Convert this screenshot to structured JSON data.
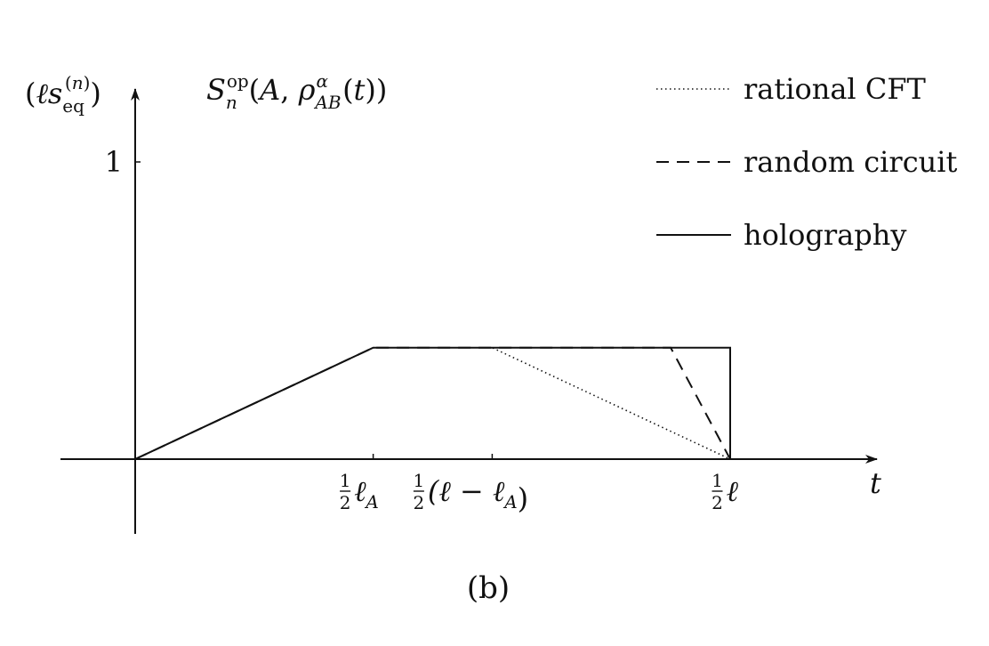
{
  "chart_data": {
    "type": "line",
    "title": "S_n^op(A, ρ_AB^α(t))",
    "xlabel": "t",
    "ylabel": "(ℓ s_eq^(n))",
    "panel_label": "(b)",
    "x_params": {
      "l": 1.0,
      "lA": 0.4
    },
    "x_ticks": [
      {
        "label": "½ℓ_A",
        "value": 0.2
      },
      {
        "label": "½(ℓ − ℓ_A)",
        "value": 0.3
      },
      {
        "label": "½ℓ",
        "value": 0.5
      }
    ],
    "y_ticks": [
      {
        "label": "1",
        "value": 1
      }
    ],
    "xlim": [
      -0.06,
      0.62
    ],
    "ylim": [
      -0.25,
      1.25
    ],
    "legend_position": "top-right",
    "grid": false,
    "series": [
      {
        "name": "rational CFT",
        "style": "dotted",
        "x": [
          0,
          0.2,
          0.3,
          0.5
        ],
        "y": [
          0,
          0.375,
          0.375,
          0
        ]
      },
      {
        "name": "random circuit",
        "style": "dashed",
        "x": [
          0,
          0.2,
          0.4,
          0.45,
          0.5
        ],
        "y": [
          0,
          0.375,
          0.375,
          0.375,
          0
        ]
      },
      {
        "name": "holography",
        "style": "solid",
        "x": [
          0,
          0.2,
          0.5,
          0.5
        ],
        "y": [
          0,
          0.375,
          0.375,
          0
        ]
      }
    ]
  }
}
